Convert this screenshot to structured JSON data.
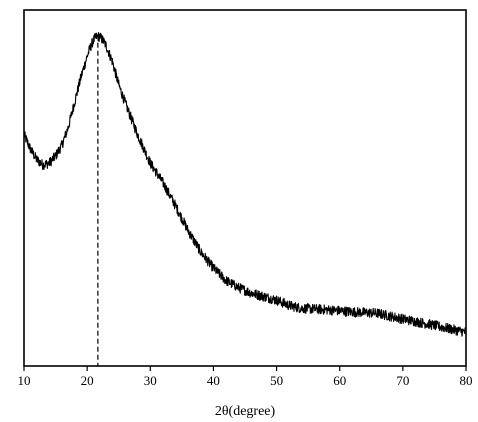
{
  "chart_data": {
    "type": "line",
    "title": "",
    "xlabel": "2θ(degree)",
    "ylabel": "",
    "xlim": [
      10,
      80
    ],
    "ylim": [
      0,
      1
    ],
    "xticks": [
      "10",
      "20",
      "30",
      "40",
      "50",
      "60",
      "70",
      "80"
    ],
    "grid": false,
    "legend": "none",
    "colors": {
      "line": "#000000",
      "marker": "#000000",
      "frame": "#000000"
    },
    "reference_line": {
      "x": 21.7,
      "style": "dashed"
    },
    "series": [
      {
        "x": [
          10,
          11,
          12,
          13,
          14,
          15,
          16,
          17,
          18,
          19,
          20,
          20.5,
          21,
          21.5,
          22,
          22.5,
          23,
          24,
          25,
          26,
          27,
          28,
          29,
          30,
          32,
          34,
          36,
          38,
          40,
          42,
          44,
          46,
          48,
          50,
          52,
          54,
          56,
          58,
          60,
          62,
          64,
          66,
          68,
          70,
          72,
          74,
          76,
          78,
          80
        ],
        "y": [
          0.65,
          0.61,
          0.58,
          0.565,
          0.57,
          0.59,
          0.62,
          0.67,
          0.74,
          0.81,
          0.87,
          0.895,
          0.915,
          0.925,
          0.925,
          0.915,
          0.9,
          0.855,
          0.79,
          0.74,
          0.695,
          0.65,
          0.61,
          0.57,
          0.515,
          0.45,
          0.38,
          0.32,
          0.275,
          0.24,
          0.22,
          0.205,
          0.195,
          0.185,
          0.17,
          0.162,
          0.16,
          0.158,
          0.155,
          0.152,
          0.15,
          0.148,
          0.14,
          0.132,
          0.125,
          0.118,
          0.11,
          0.102,
          0.095
        ]
      }
    ]
  }
}
